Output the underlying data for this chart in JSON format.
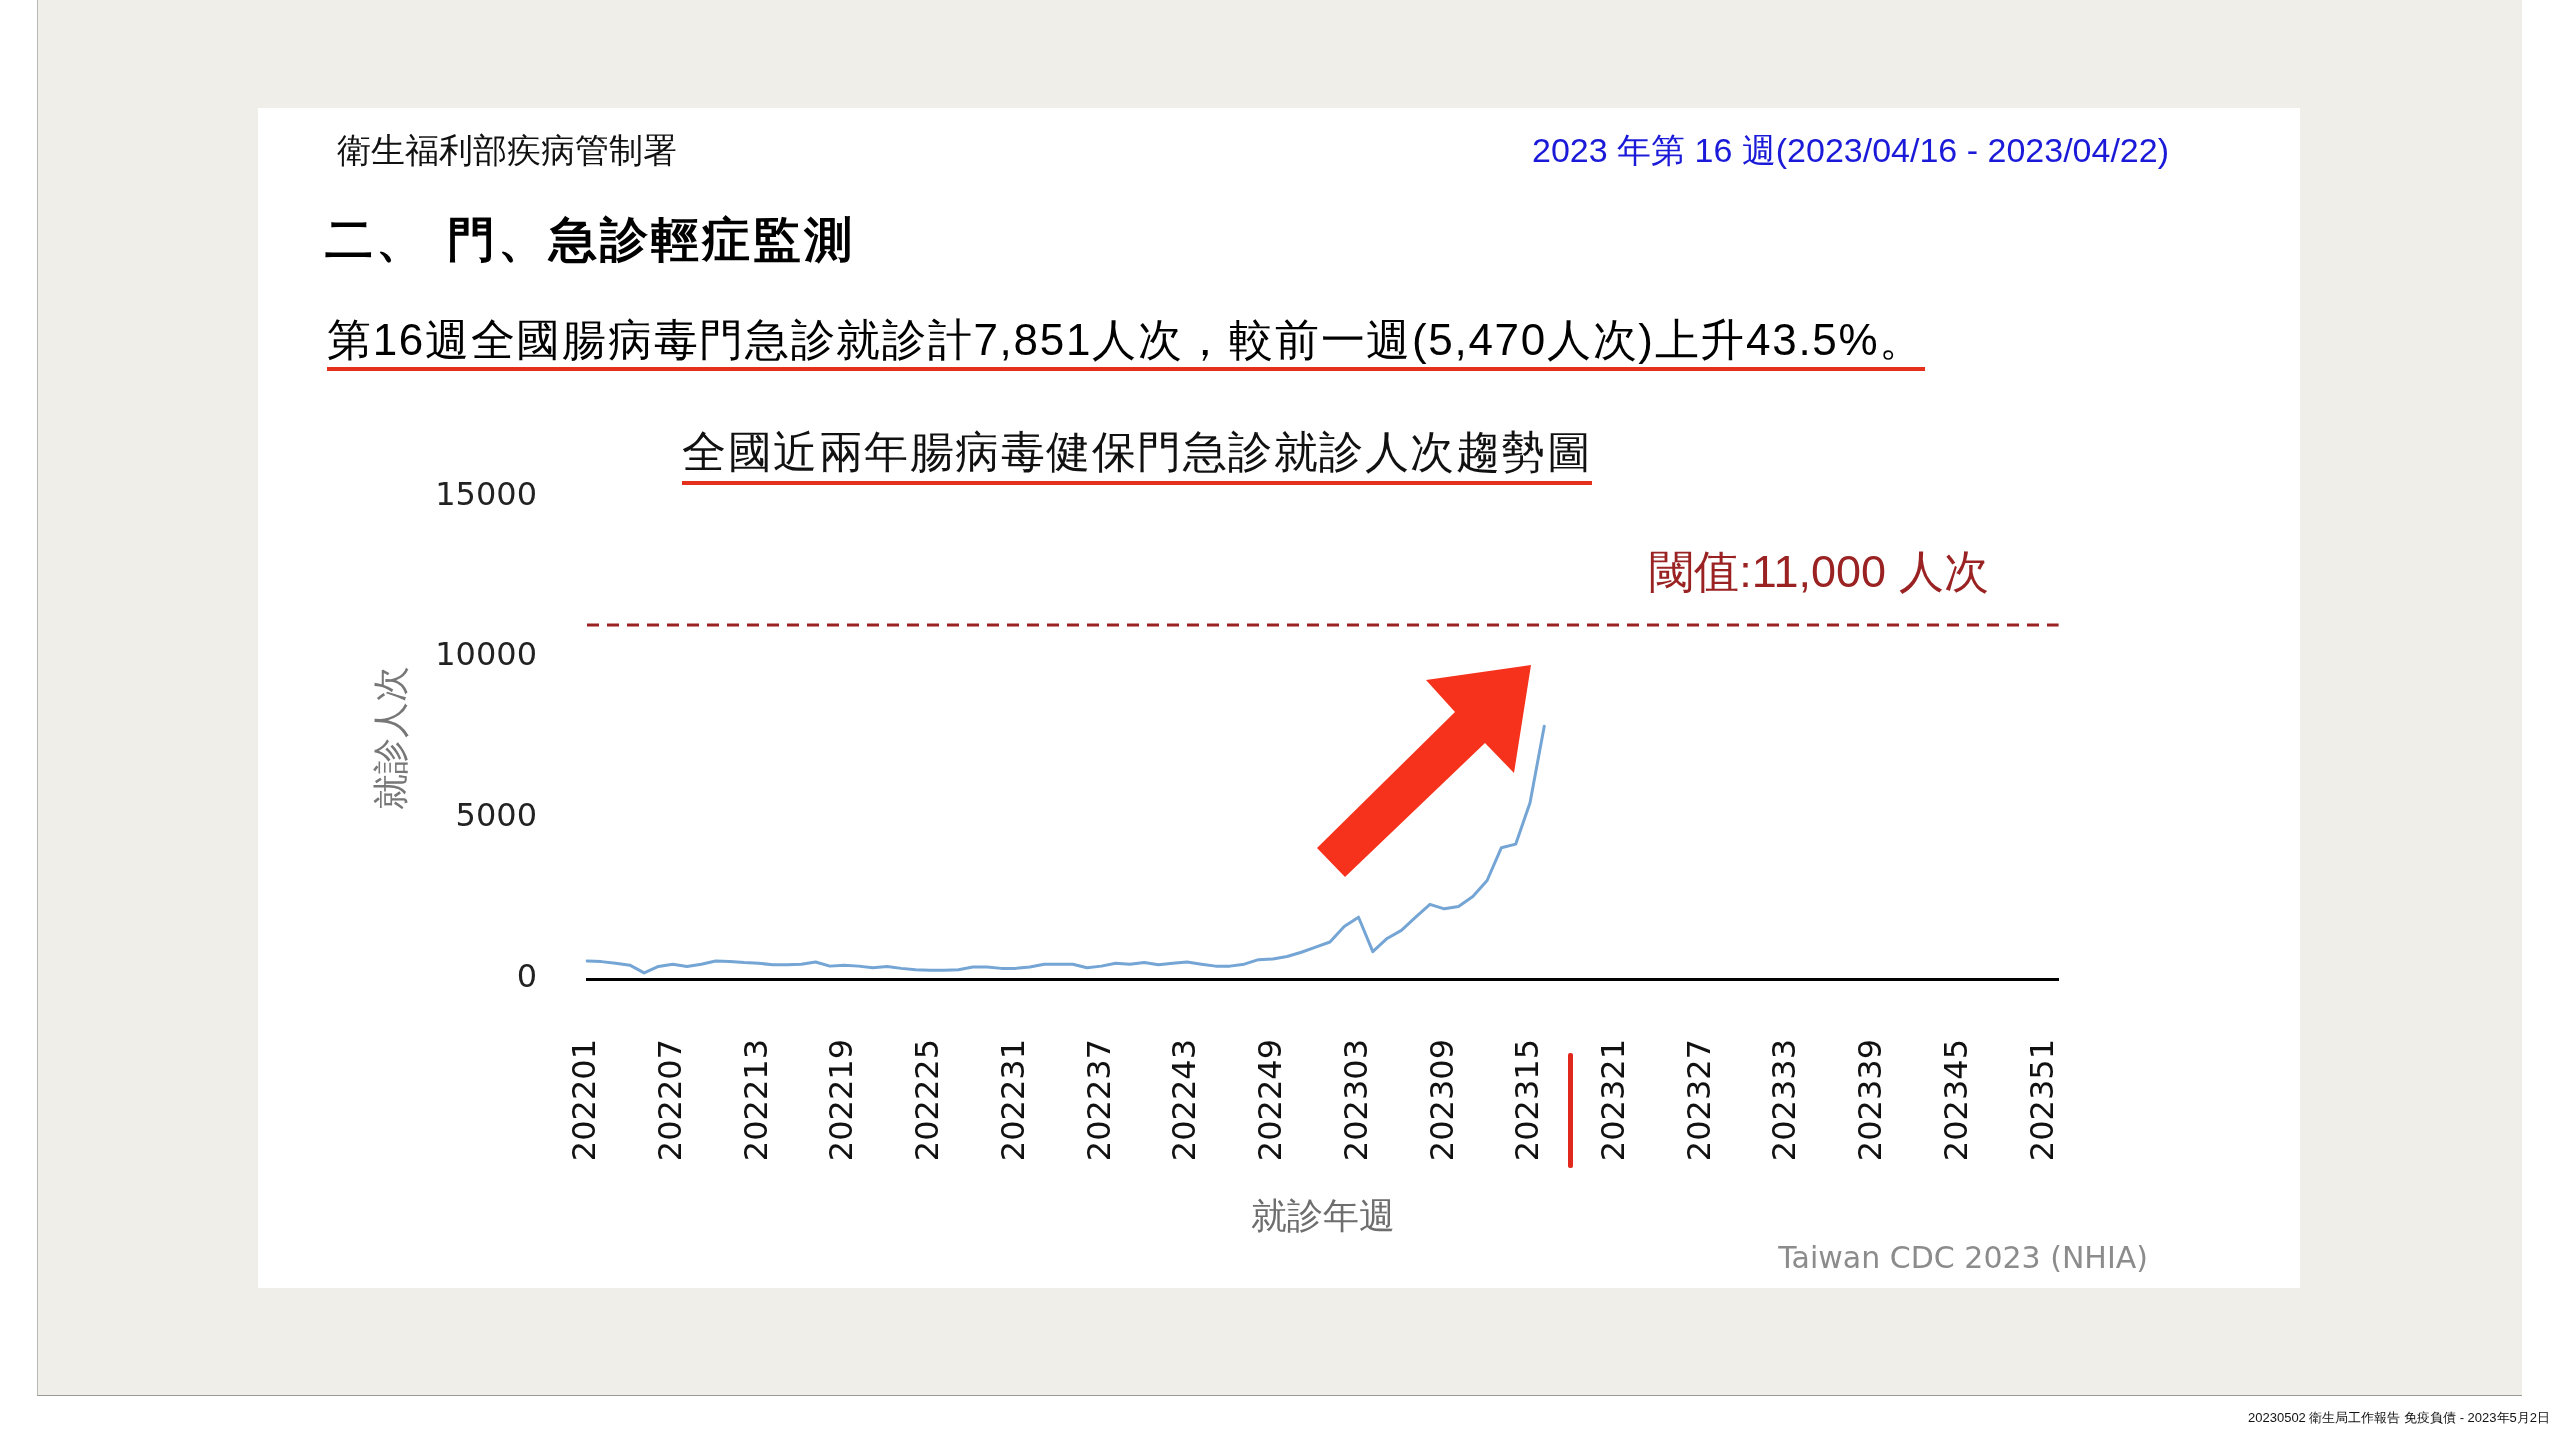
{
  "chart_data": {
    "type": "line",
    "title": "全國近兩年腸病毒健保門急診就診人次趨勢圖",
    "xlabel": "就診年週",
    "ylabel": "就診人次",
    "categories": [
      "202201",
      null,
      null,
      null,
      null,
      null,
      "202207",
      null,
      null,
      null,
      null,
      null,
      "202213",
      null,
      null,
      null,
      null,
      null,
      "202219",
      null,
      null,
      null,
      null,
      null,
      "202225",
      null,
      null,
      null,
      null,
      null,
      "202231",
      null,
      null,
      null,
      null,
      null,
      "202237",
      null,
      null,
      null,
      null,
      null,
      "202243",
      null,
      null,
      null,
      null,
      null,
      "202249",
      null,
      null,
      null,
      null,
      null,
      "202303",
      null,
      null,
      null,
      null,
      null,
      "202309",
      null,
      null,
      null,
      null,
      null,
      "202315",
      null,
      null,
      null,
      null,
      null,
      "202321",
      null,
      null,
      null,
      null,
      null,
      "202327",
      null,
      null,
      null,
      null,
      null,
      "202333",
      null,
      null,
      null,
      null,
      null,
      "202339",
      null,
      null,
      null,
      null,
      null,
      "202345",
      null,
      null,
      null,
      null,
      null,
      "202351",
      null
    ],
    "values": [
      560,
      540,
      490,
      430,
      190,
      390,
      460,
      390,
      460,
      560,
      540,
      510,
      490,
      440,
      440,
      460,
      530,
      400,
      430,
      400,
      350,
      390,
      330,
      290,
      270,
      270,
      290,
      370,
      370,
      330,
      330,
      370,
      460,
      460,
      460,
      350,
      400,
      490,
      460,
      510,
      440,
      490,
      530,
      460,
      400,
      400,
      460,
      600,
      620,
      700,
      830,
      990,
      1150,
      1630,
      1920,
      850,
      1260,
      1510,
      1920,
      2320,
      2180,
      2250,
      2560,
      3060,
      4080,
      4190,
      5470,
      7851,
      null,
      null,
      null,
      null,
      null,
      null,
      null,
      null,
      null,
      null,
      null,
      null,
      null,
      null,
      null,
      null,
      null,
      null,
      null,
      null,
      null,
      null,
      null,
      null,
      null,
      null,
      null,
      null,
      null,
      null,
      null,
      null,
      null,
      null,
      null,
      null
    ],
    "color": "#74a5d4",
    "ylim": [
      0,
      15000
    ],
    "yticks": [
      0,
      5000,
      10000,
      15000
    ],
    "grid": false,
    "legend": false,
    "marker": "none",
    "line_style": "solid",
    "ref_lines": [
      {
        "axis": "y",
        "value": 11000,
        "label": "閾值:11,000 人次",
        "color": "#9a2222",
        "line_style": "dashed"
      }
    ],
    "annotations": [
      "衛生福利部疾病管制署",
      "2023 年第 16 週(2023/04/16 - 2023/04/22)",
      "二、 門、急診輕症監測",
      "第16週全國腸病毒門急診就診計7,851人次，較前一週(5,470人次)上升43.5%。",
      "Taiwan CDC 2023 (NHIA)",
      "20230502 衛生局工作報告 免疫負債 - 2023年5月2日"
    ]
  }
}
